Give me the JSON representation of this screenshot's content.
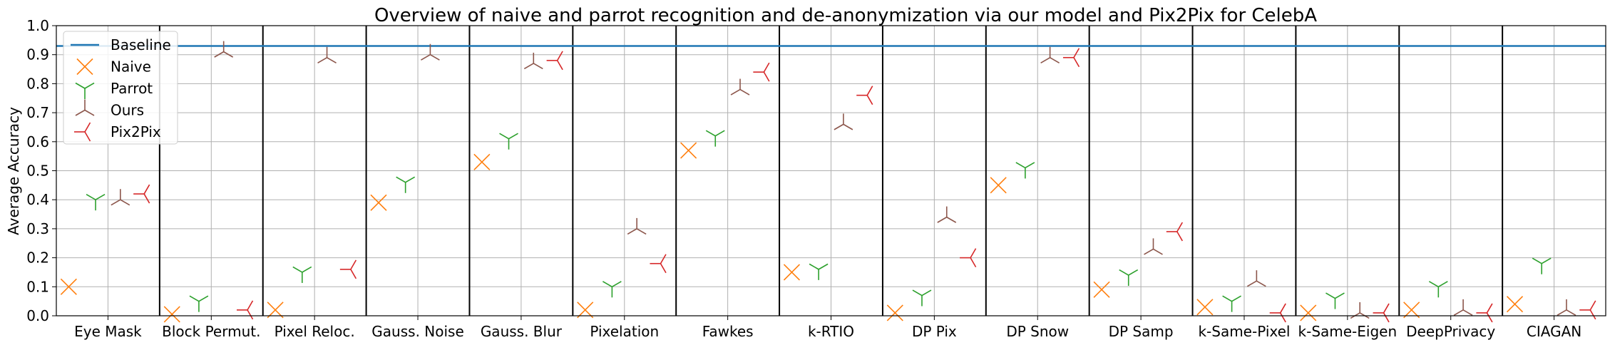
{
  "chart_data": {
    "type": "scatter",
    "title": "Overview of naive and parrot recognition and de-anonymization via our model and Pix2Pix for CelebA",
    "xlabel": "",
    "ylabel": "Average Accuracy",
    "ylim": [
      0.0,
      1.0
    ],
    "yticks": [
      "0.0",
      "0.1",
      "0.2",
      "0.3",
      "0.4",
      "0.5",
      "0.6",
      "0.7",
      "0.8",
      "0.9",
      "1.0"
    ],
    "grid": true,
    "legend_position": "top-left",
    "baseline": {
      "name": "Baseline",
      "value": 0.93,
      "color": "#1f77b4"
    },
    "categories": [
      "Eye Mask",
      "Block Permut.",
      "Pixel Reloc.",
      "Gauss. Noise",
      "Gauss. Blur",
      "Pixelation",
      "Fawkes",
      "k-RTIO",
      "DP Pix",
      "DP Snow",
      "DP Samp",
      "k-Same-Pixel",
      "k-Same-Eigen",
      "DeepPrivacy",
      "CIAGAN"
    ],
    "series": [
      {
        "name": "Naive",
        "marker": "x-icon",
        "color": "#ff7f0e",
        "values": [
          0.1,
          0.005,
          0.02,
          0.39,
          0.53,
          0.02,
          0.57,
          0.15,
          0.01,
          0.45,
          0.09,
          0.03,
          0.01,
          0.02,
          0.04
        ]
      },
      {
        "name": "Parrot",
        "marker": "tri-down-icon",
        "color": "#2ca02c",
        "values": [
          0.4,
          0.05,
          0.15,
          0.46,
          0.61,
          0.1,
          0.62,
          0.16,
          0.07,
          0.51,
          0.14,
          0.05,
          0.06,
          0.1,
          0.18
        ]
      },
      {
        "name": "Ours",
        "marker": "tri-up-icon",
        "color": "#8c564b",
        "values": [
          0.4,
          0.91,
          0.89,
          0.9,
          0.87,
          0.3,
          0.78,
          0.66,
          0.34,
          0.89,
          0.23,
          0.12,
          0.01,
          0.02,
          0.02
        ]
      },
      {
        "name": "Pix2Pix",
        "marker": "tri-left-icon",
        "color": "#d62728",
        "values": [
          0.42,
          0.02,
          0.16,
          null,
          0.88,
          0.18,
          0.84,
          0.76,
          0.2,
          0.89,
          0.29,
          0.01,
          0.01,
          0.01,
          0.02
        ]
      }
    ]
  }
}
